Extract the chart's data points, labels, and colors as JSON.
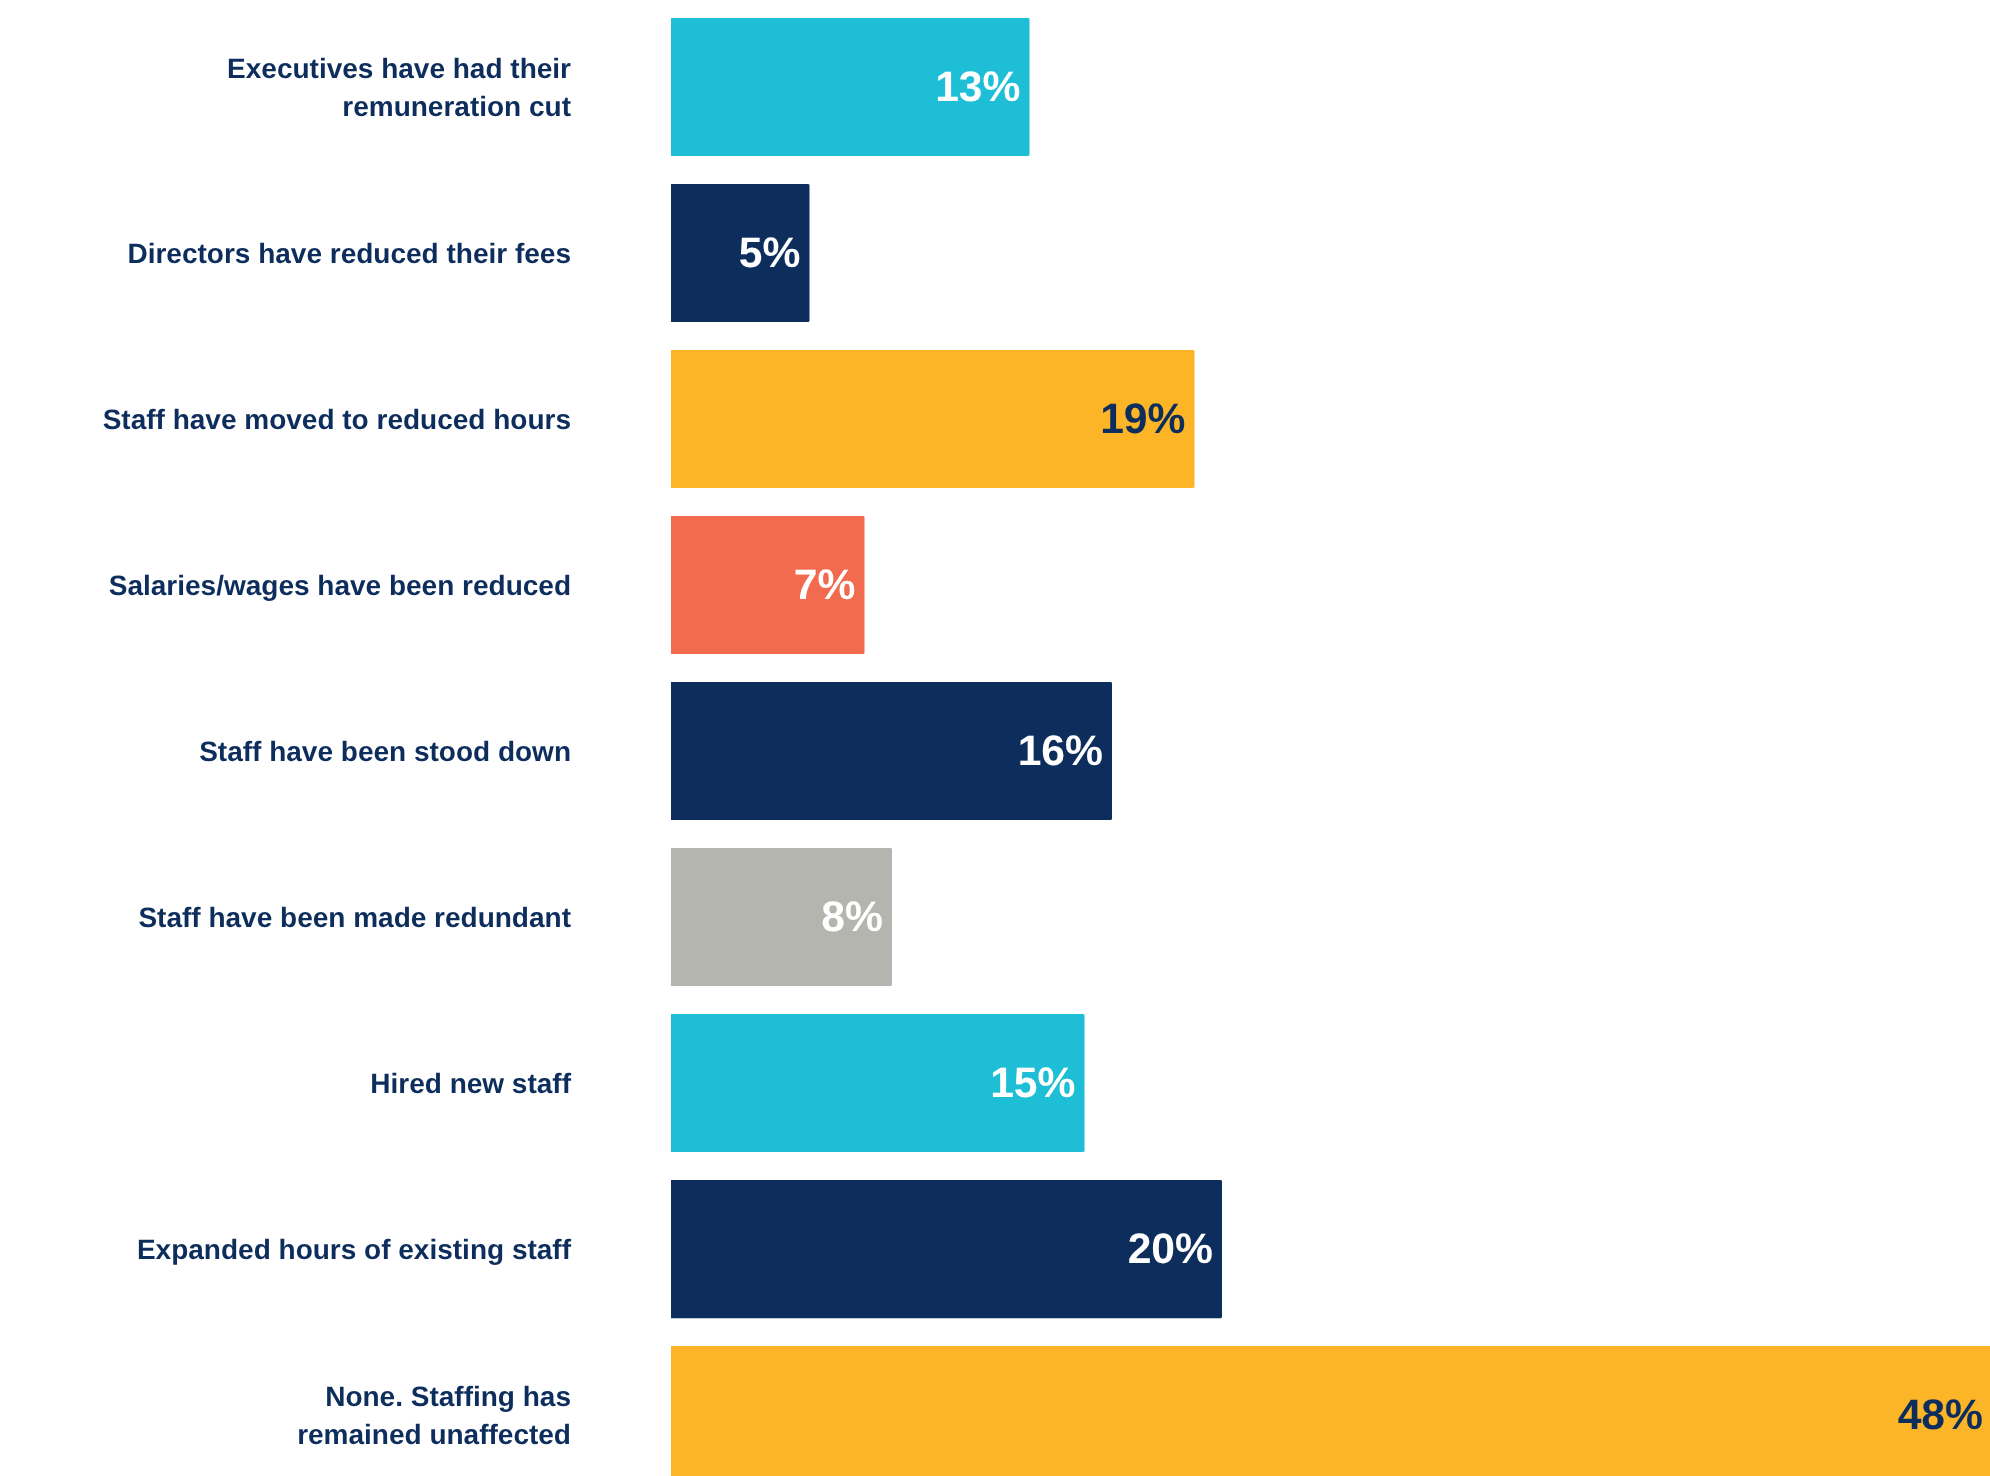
{
  "chart_data": {
    "type": "bar",
    "orientation": "horizontal",
    "categories": [
      "Executives have had their remuneration cut",
      "Directors have reduced their fees",
      "Staff have moved to reduced hours",
      "Salaries/wages have been reduced",
      "Staff have been stood down",
      "Staff have been made redundant",
      "Hired new staff",
      "Expanded hours of existing staff",
      "None. Staffing has remained unaffected"
    ],
    "values": [
      13,
      5,
      19,
      7,
      16,
      8,
      15,
      20,
      48
    ],
    "colors": [
      "#1ebfd6",
      "#0d2d5c",
      "#fbb526",
      "#f26b4f",
      "#0d2d5c",
      "#b5b5b0",
      "#1ebfd6",
      "#0d2d5c",
      "#fbb526"
    ],
    "value_labels": [
      "13%",
      "5%",
      "19%",
      "7%",
      "16%",
      "8%",
      "15%",
      "20%",
      "48%"
    ],
    "grid": false
  }
}
